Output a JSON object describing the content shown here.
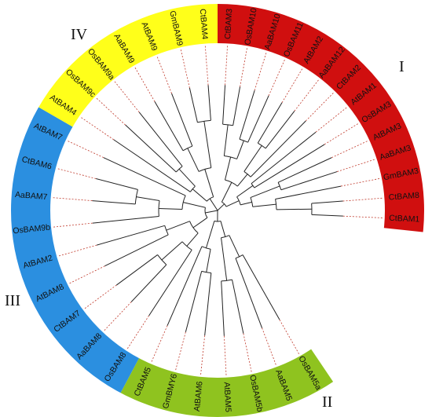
{
  "groups": [
    {
      "id": "I",
      "label": "I",
      "color": "#d00f0f",
      "start": 0,
      "end": 96
    },
    {
      "id": "II",
      "label": "II",
      "color": "#8fc31f",
      "start": 146,
      "end": 208
    },
    {
      "id": "III",
      "label": "III",
      "color": "#2b8fe0",
      "start": 208,
      "end": 300
    },
    {
      "id": "IV",
      "label": "IV",
      "color": "#ffff1a",
      "start": 300,
      "end": 360
    }
  ],
  "leaves": [
    {
      "name": "CtBAM3",
      "group": "I"
    },
    {
      "name": "OsBAM10",
      "group": "I"
    },
    {
      "name": "AaBAM10",
      "group": "I"
    },
    {
      "name": "OsBAM11",
      "group": "I"
    },
    {
      "name": "AtBAM2",
      "group": "I"
    },
    {
      "name": "AaBAM12",
      "group": "I"
    },
    {
      "name": "CtBAM2",
      "group": "I"
    },
    {
      "name": "AtBAM1",
      "group": "I"
    },
    {
      "name": "OsBAM3",
      "group": "I"
    },
    {
      "name": "AtBAM3",
      "group": "I"
    },
    {
      "name": "AaBAM3",
      "group": "I"
    },
    {
      "name": "GmBAM3",
      "group": "I"
    },
    {
      "name": "CtBAM8",
      "group": "I"
    },
    {
      "name": "CtBAM1",
      "group": "I"
    },
    {
      "name": "OsBAM5a",
      "group": "II"
    },
    {
      "name": "AaBAM5",
      "group": "II"
    },
    {
      "name": "OsBAM5b",
      "group": "II"
    },
    {
      "name": "AtBAM5",
      "group": "II"
    },
    {
      "name": "AtBAM6",
      "group": "II"
    },
    {
      "name": "GmBMY6",
      "group": "II"
    },
    {
      "name": "CtBAM5",
      "group": "II"
    },
    {
      "name": "OsBAM8",
      "group": "III"
    },
    {
      "name": "AaBAM8",
      "group": "III"
    },
    {
      "name": "CtBAM7",
      "group": "III"
    },
    {
      "name": "AtBAM8",
      "group": "III"
    },
    {
      "name": "AtBAM2",
      "group": "III"
    },
    {
      "name": "OsBAM9b",
      "group": "III"
    },
    {
      "name": "AaBAM7",
      "group": "III"
    },
    {
      "name": "CtBAM6",
      "group": "III"
    },
    {
      "name": "AtBAM7",
      "group": "III"
    },
    {
      "name": "AtBAM4",
      "group": "IV"
    },
    {
      "name": "OsBAM9c",
      "group": "IV"
    },
    {
      "name": "OsBAM9a",
      "group": "IV"
    },
    {
      "name": "AaBAM9",
      "group": "IV"
    },
    {
      "name": "AtBAM9",
      "group": "IV"
    },
    {
      "name": "GmBAM9",
      "group": "IV"
    },
    {
      "name": "CtBAM4",
      "group": "IV"
    }
  ],
  "colors": {
    "branch": "#222222",
    "leader": "#c0392b",
    "ring_border": "#ffffff"
  }
}
